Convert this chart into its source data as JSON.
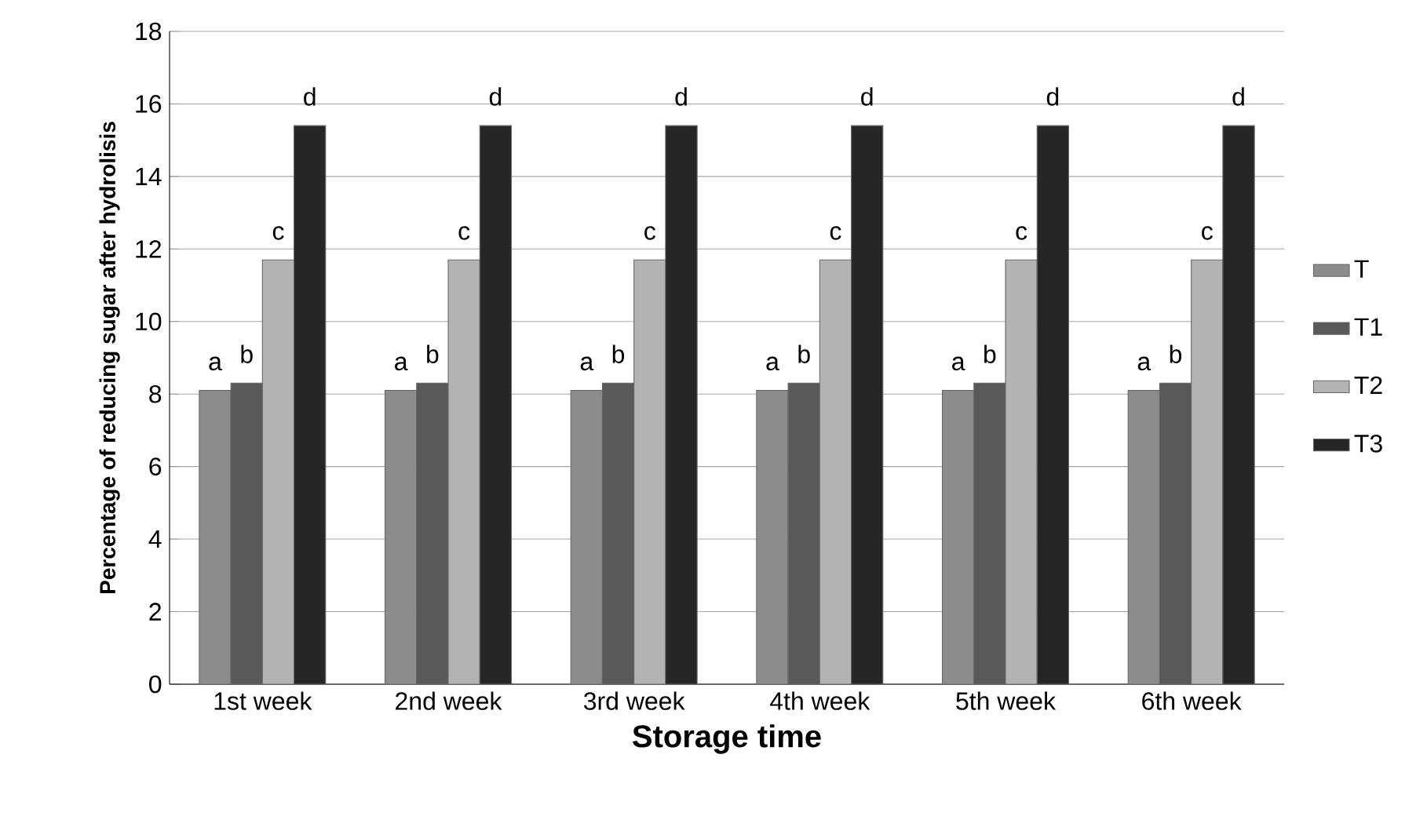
{
  "chart_data": {
    "type": "bar",
    "xlabel": "Storage time",
    "ylabel": "Percentage of reducing sugar after hydrolisis",
    "categories": [
      "1st week",
      "2nd week",
      "3rd week",
      "4th week",
      "5th week",
      "6th week"
    ],
    "series": [
      {
        "name": "T",
        "color": "#8c8c8c",
        "values": [
          8.1,
          8.1,
          8.1,
          8.1,
          8.1,
          8.1
        ],
        "value_labels": [
          "a",
          "a",
          "a",
          "a",
          "a",
          "a"
        ]
      },
      {
        "name": "T1",
        "color": "#595959",
        "values": [
          8.3,
          8.3,
          8.3,
          8.3,
          8.3,
          8.3
        ],
        "value_labels": [
          "b",
          "b",
          "b",
          "b",
          "b",
          "b"
        ]
      },
      {
        "name": "T2",
        "color": "#b3b3b3",
        "values": [
          11.7,
          11.7,
          11.7,
          11.7,
          11.7,
          11.7
        ],
        "value_labels": [
          "c",
          "c",
          "c",
          "c",
          "c",
          "c"
        ]
      },
      {
        "name": "T3",
        "color": "#262626",
        "values": [
          15.4,
          15.4,
          15.4,
          15.4,
          15.4,
          15.4
        ],
        "value_labels": [
          "d",
          "d",
          "d",
          "d",
          "d",
          "d"
        ]
      }
    ],
    "ylim": [
      0,
      18
    ],
    "yticks": [
      0,
      2,
      4,
      6,
      8,
      10,
      12,
      14,
      16,
      18
    ],
    "grid": "y",
    "legend": "right"
  }
}
